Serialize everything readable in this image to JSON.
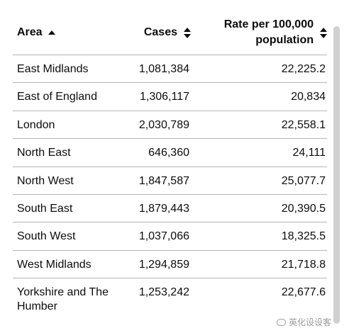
{
  "table": {
    "columns": {
      "area": "Area",
      "cases": "Cases",
      "rate_line1": "Rate per 100,000",
      "rate_line2": "population"
    },
    "rows": [
      {
        "area": "East Midlands",
        "cases": "1,081,384",
        "rate": "22,225.2"
      },
      {
        "area": "East of England",
        "cases": "1,306,117",
        "rate": "20,834"
      },
      {
        "area": "London",
        "cases": "2,030,789",
        "rate": "22,558.1"
      },
      {
        "area": "North East",
        "cases": "646,360",
        "rate": "24,111"
      },
      {
        "area": "North West",
        "cases": "1,847,587",
        "rate": "25,077.7"
      },
      {
        "area": "South East",
        "cases": "1,879,443",
        "rate": "20,390.5"
      },
      {
        "area": "South West",
        "cases": "1,037,066",
        "rate": "18,325.5"
      },
      {
        "area": "West Midlands",
        "cases": "1,294,859",
        "rate": "21,718.8"
      },
      {
        "area": "Yorkshire and The Humber",
        "cases": "1,253,242",
        "rate": "22,677.6"
      }
    ]
  },
  "watermark": {
    "text": "英化设设客"
  },
  "icons": {
    "area_sort": "sort-ascending-icon",
    "cases_sort": "sort-both-icon",
    "rate_sort": "sort-both-icon"
  }
}
